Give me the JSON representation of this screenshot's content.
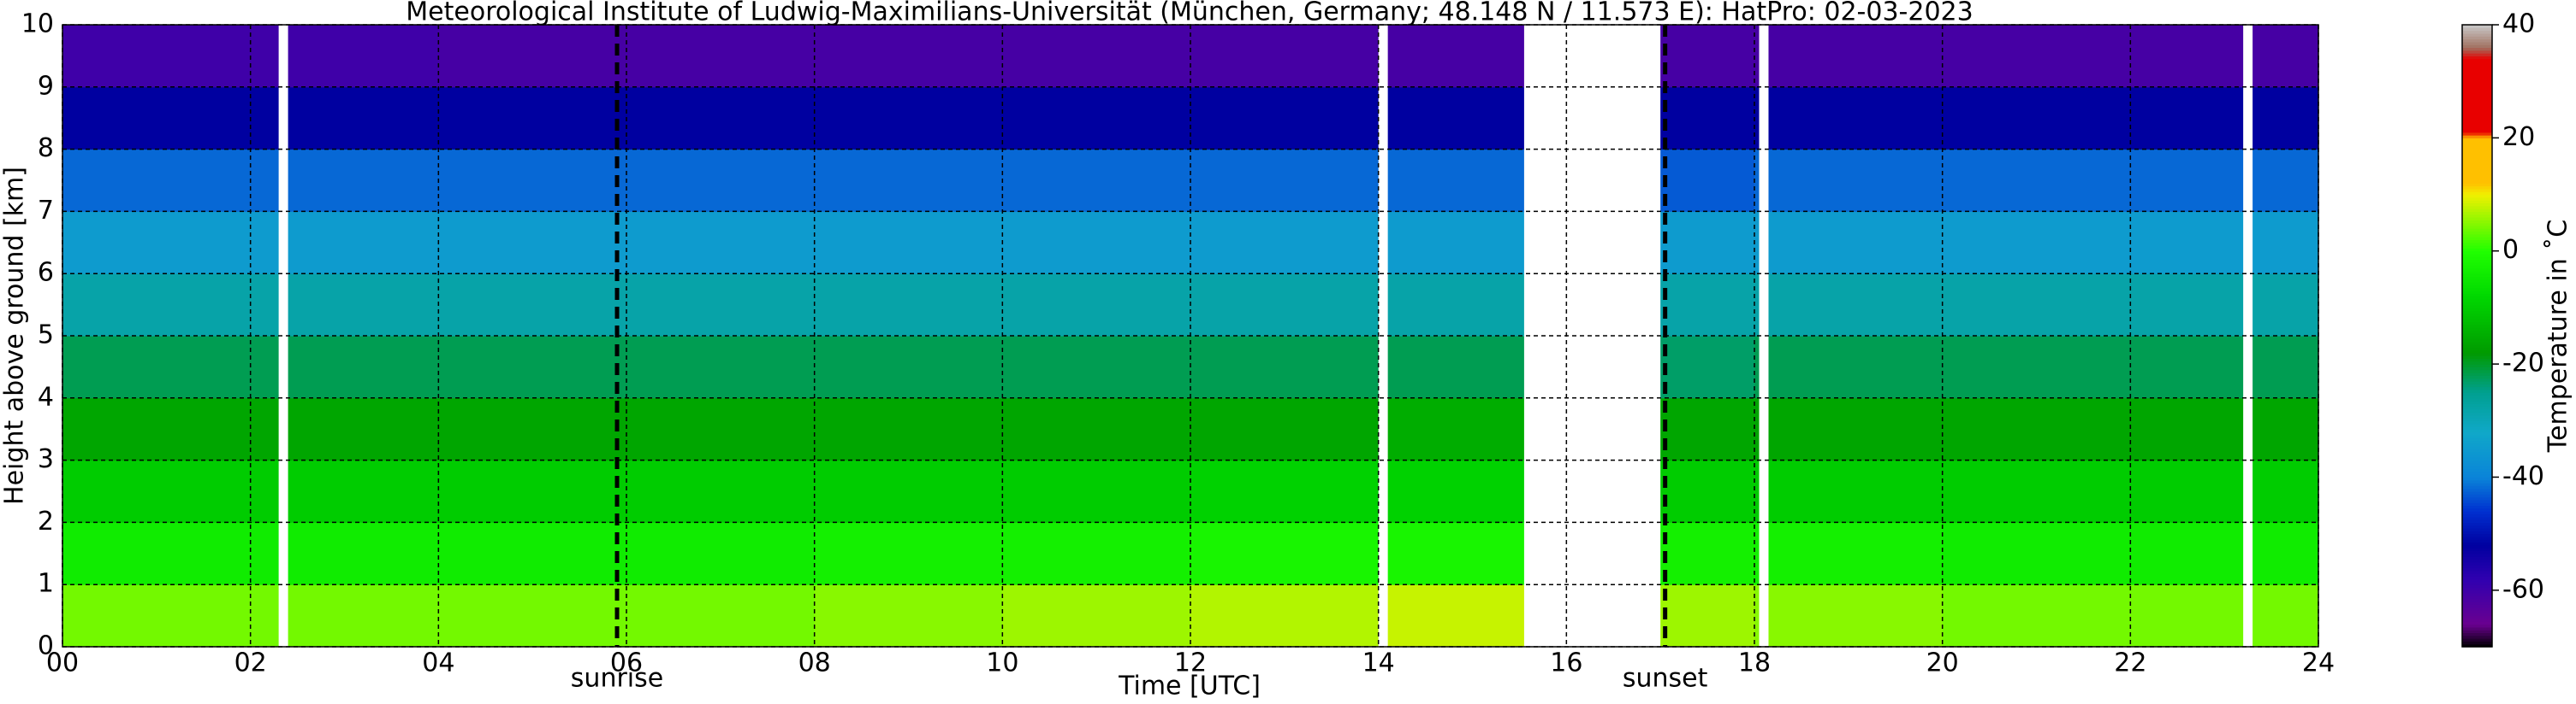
{
  "chart_data": {
    "type": "heatmap",
    "title": "Meteorological Institute of Ludwig-Maximilians-Universität (München, Germany; 48.148 N / 11.573 E):    HatPro: 02-03-2023",
    "x_label": "Time [UTC]",
    "y_label": "Height above ground [km]",
    "colorbar_label": "Temperature in ˚C",
    "x": [
      0,
      2,
      4,
      6,
      8,
      10,
      12,
      14,
      16,
      18,
      20,
      22,
      24
    ],
    "heights": [
      0,
      1,
      2,
      3,
      4,
      5,
      6,
      7,
      8,
      9,
      10
    ],
    "z": [
      [
        4,
        -4,
        -10,
        -16,
        -22,
        -28,
        -35,
        -42,
        -52,
        -60
      ],
      [
        4,
        -4,
        -10,
        -16,
        -22,
        -28,
        -35,
        -42,
        -52,
        -60
      ],
      [
        4,
        -4,
        -10,
        -16,
        -22,
        -28,
        -35,
        -42,
        -52,
        -61
      ],
      [
        4,
        -4,
        -10,
        -16,
        -22,
        -28,
        -35,
        -42,
        -52,
        -61
      ],
      [
        5,
        -3,
        -10,
        -16,
        -22,
        -28,
        -35,
        -42,
        -52,
        -61
      ],
      [
        6,
        -3,
        -10,
        -16,
        -22,
        -28,
        -35,
        -42,
        -52,
        -61
      ],
      [
        7,
        -2,
        -9,
        -16,
        -22,
        -28,
        -35,
        -42,
        -52,
        -61
      ],
      [
        8,
        -2,
        -9,
        -15,
        -22,
        -28,
        -35,
        -42,
        -52,
        -61
      ],
      [
        6,
        -3,
        -10,
        -16,
        -23,
        -28,
        -35,
        -43,
        -52,
        -61
      ],
      [
        5,
        -3,
        -10,
        -16,
        -22,
        -28,
        -35,
        -42,
        -52,
        -61
      ],
      [
        4,
        -4,
        -10,
        -16,
        -22,
        -28,
        -35,
        -42,
        -52,
        -61
      ],
      [
        4,
        -4,
        -10,
        -16,
        -22,
        -28,
        -35,
        -42,
        -52,
        -61
      ]
    ],
    "gaps": [
      [
        2.3,
        2.4
      ],
      [
        14.0,
        14.1
      ],
      [
        15.55,
        17.0
      ],
      [
        18.05,
        18.15
      ],
      [
        23.2,
        23.3
      ]
    ],
    "xlim": [
      0,
      24
    ],
    "ylim": [
      0,
      10
    ],
    "xticks": [
      {
        "value": 0,
        "label": "00"
      },
      {
        "value": 2,
        "label": "02"
      },
      {
        "value": 4,
        "label": "04"
      },
      {
        "value": 6,
        "label": "06"
      },
      {
        "value": 8,
        "label": "08"
      },
      {
        "value": 10,
        "label": "10"
      },
      {
        "value": 12,
        "label": "12"
      },
      {
        "value": 14,
        "label": "14"
      },
      {
        "value": 16,
        "label": "16"
      },
      {
        "value": 18,
        "label": "18"
      },
      {
        "value": 20,
        "label": "20"
      },
      {
        "value": 22,
        "label": "22"
      },
      {
        "value": 24,
        "label": "24"
      }
    ],
    "yticks": [
      0,
      1,
      2,
      3,
      4,
      5,
      6,
      7,
      8,
      9,
      10
    ],
    "clim": [
      -70,
      40
    ],
    "cticks": [
      -60,
      -40,
      -20,
      0,
      20,
      40
    ],
    "colorscale": [
      {
        "value": -70,
        "color": "#000000"
      },
      {
        "value": -66,
        "color": "#6a0090"
      },
      {
        "value": -58,
        "color": "#3000b0"
      },
      {
        "value": -52,
        "color": "#0000a0"
      },
      {
        "value": -46,
        "color": "#0030d0"
      },
      {
        "value": -40,
        "color": "#0a84d8"
      },
      {
        "value": -32,
        "color": "#10a8c8"
      },
      {
        "value": -25,
        "color": "#00a090"
      },
      {
        "value": -18,
        "color": "#009a00"
      },
      {
        "value": -8,
        "color": "#00d800"
      },
      {
        "value": 0,
        "color": "#20ff00"
      },
      {
        "value": 10,
        "color": "#f0f000"
      },
      {
        "value": 12,
        "color": "#ffc000"
      },
      {
        "value": 20,
        "color": "#ffc000"
      },
      {
        "value": 21,
        "color": "#e80000"
      },
      {
        "value": 34,
        "color": "#e80000"
      },
      {
        "value": 36,
        "color": "#a07060"
      },
      {
        "value": 40,
        "color": "#c8c8c8"
      }
    ],
    "grid": true,
    "annotations": [
      {
        "x": 5.9,
        "text": "sunrise"
      },
      {
        "x": 17.05,
        "text": "sunset"
      }
    ]
  }
}
